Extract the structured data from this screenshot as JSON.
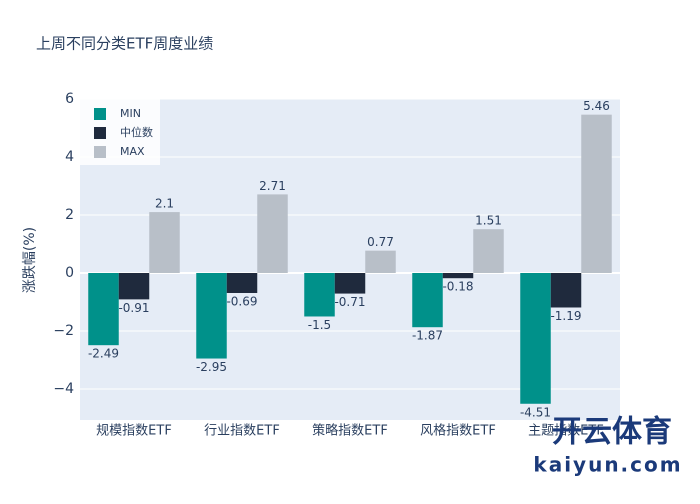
{
  "chart_data": {
    "type": "bar",
    "title": "上周不同分类ETF周度业绩",
    "y_label": "涨跌幅(%)",
    "categories": [
      "规模指数ETF",
      "行业指数ETF",
      "策略指数ETF",
      "风格指数ETF",
      "主题指数ETF"
    ],
    "series": [
      {
        "name": "MIN",
        "color": "#00918a",
        "values": [
          -2.49,
          -2.95,
          -1.5,
          -1.87,
          -4.51
        ]
      },
      {
        "name": "中位数",
        "color": "#1f2a3d",
        "values": [
          -0.91,
          -0.69,
          -0.71,
          -0.18,
          -1.19
        ]
      },
      {
        "name": "MAX",
        "color": "#b8bfc8",
        "values": [
          2.1,
          2.71,
          0.77,
          1.51,
          5.46
        ]
      }
    ],
    "ylim": [
      -5.07,
      6
    ],
    "yticks": [
      {
        "value": -4,
        "label": "−4"
      },
      {
        "value": -2,
        "label": "−2"
      },
      0,
      2,
      4,
      6
    ],
    "grid": true,
    "legend": "top-left",
    "watermark": [
      "开云体育",
      "kaiyun.com"
    ]
  }
}
